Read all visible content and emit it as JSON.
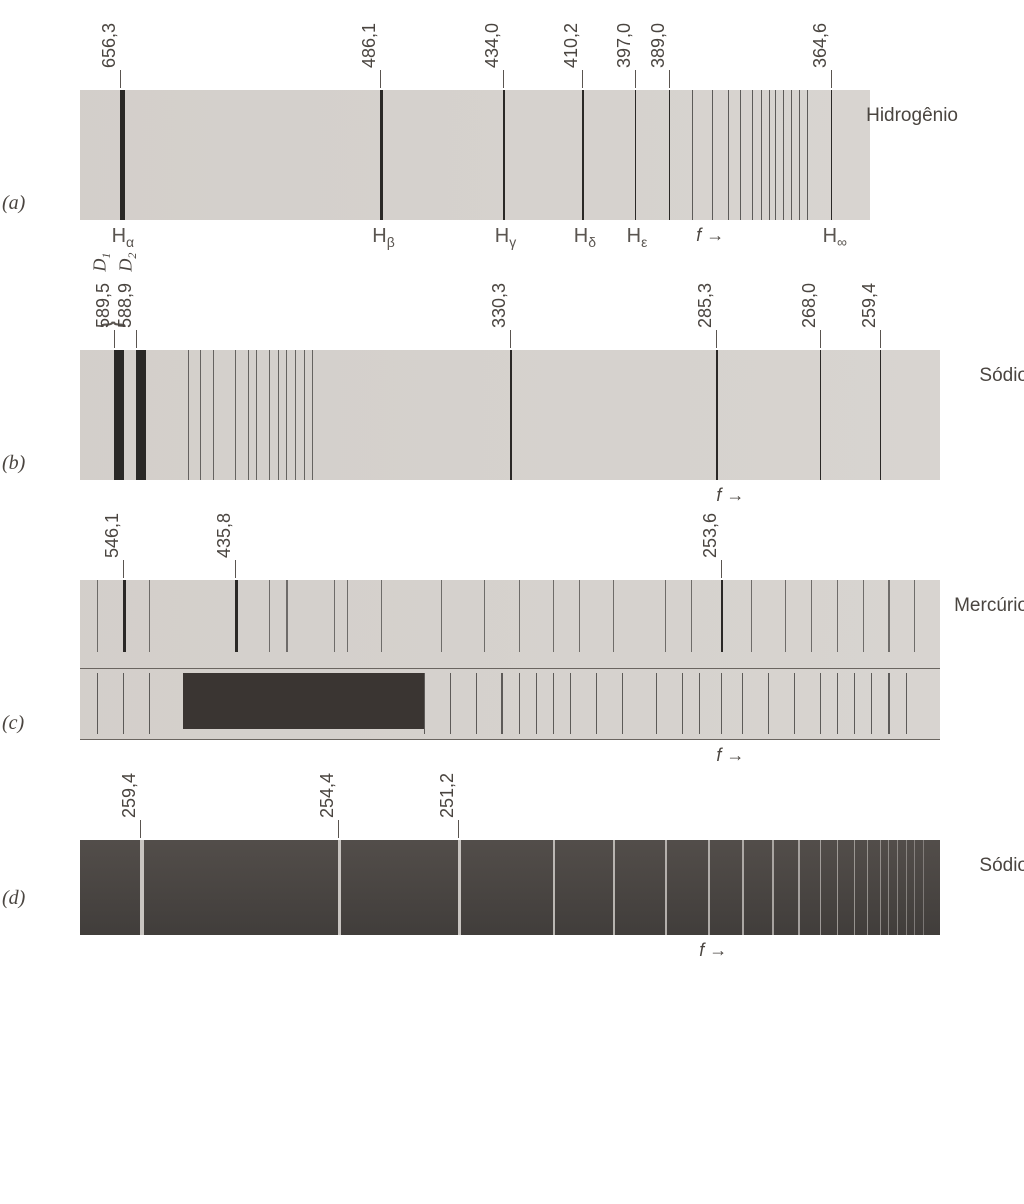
{
  "colors": {
    "band_bg": "#d8d4d0",
    "dark_band_bg": "#5a5552",
    "line_dark": "#2a2826",
    "line_light": "#c8c4c0",
    "text": "#4a4540",
    "tick": "#5a5550"
  },
  "typography": {
    "label_fontsize": 18,
    "element_fontsize": 19,
    "panel_fontsize": 20
  },
  "panels": {
    "a": {
      "letter": "(a)",
      "element": "Hidrogênio",
      "band_width": 790,
      "lines": [
        {
          "wl": "656,3",
          "pos_pct": 5.0,
          "width": 5,
          "bottom": "H",
          "sub": "α"
        },
        {
          "wl": "486,1",
          "pos_pct": 38.0,
          "width": 3,
          "bottom": "H",
          "sub": "β"
        },
        {
          "wl": "434,0",
          "pos_pct": 53.5,
          "width": 2,
          "bottom": "H",
          "sub": "γ"
        },
        {
          "wl": "410,2",
          "pos_pct": 63.5,
          "width": 2,
          "bottom": "H",
          "sub": "δ"
        },
        {
          "wl": "397,0",
          "pos_pct": 70.2,
          "width": 1.5,
          "bottom": "H",
          "sub": "ε"
        },
        {
          "wl": "389,0",
          "pos_pct": 74.5,
          "width": 1.2
        },
        {
          "wl": "364,6",
          "pos_pct": 95.0,
          "width": 1,
          "bottom": "H",
          "sub": "∞"
        }
      ],
      "extra_lines_pct": [
        77.5,
        80.0,
        82.0,
        83.5,
        85.0,
        86.2,
        87.2,
        88.0,
        89.0,
        90.0,
        91.0,
        92.0
      ],
      "freq_arrow": "f →",
      "freq_pos_pct": 78
    },
    "b": {
      "letter": "(b)",
      "element": "Sódio",
      "band_width": 860,
      "d_labels": [
        {
          "text": "D",
          "sub": "1",
          "pos_pct": 4.0
        },
        {
          "text": "D",
          "sub": "2",
          "pos_pct": 7.0
        }
      ],
      "lines": [
        {
          "wl": "589,5",
          "pos_pct": 4.0,
          "width": 10
        },
        {
          "wl": "588,9",
          "pos_pct": 6.5,
          "width": 10
        },
        {
          "wl": "330,3",
          "pos_pct": 50.0,
          "width": 2
        },
        {
          "wl": "285,3",
          "pos_pct": 74.0,
          "width": 1.5
        },
        {
          "wl": "268,0",
          "pos_pct": 86.0,
          "width": 1.2
        },
        {
          "wl": "259,4",
          "pos_pct": 93.0,
          "width": 1
        }
      ],
      "extra_lines_pct": [
        12.5,
        14.0,
        15.5,
        18.0,
        19.5,
        20.5,
        22.0,
        23.0,
        24.0,
        25.0,
        26.0,
        27.0
      ],
      "freq_arrow": "f →",
      "freq_pos_pct": 74
    },
    "c": {
      "letter": "(c)",
      "element": "Mercúrio",
      "band_width": 860,
      "lines": [
        {
          "wl": "546,1",
          "pos_pct": 5.0,
          "width": 3
        },
        {
          "wl": "435,8",
          "pos_pct": 18.0,
          "width": 3
        },
        {
          "wl": "253,6",
          "pos_pct": 74.5,
          "width": 2
        }
      ],
      "extra_lines_top_pct": [
        2.0,
        8.0,
        22.0,
        24.0,
        29.5,
        31.0,
        35.0,
        42.0,
        47.0,
        51.0,
        55.0,
        58.0,
        62.0,
        68.0,
        71.0,
        78.0,
        82.0,
        85.0,
        88.0,
        91.0,
        94.0,
        97.0
      ],
      "extra_lines_bot_pct": [
        2.0,
        5.0,
        8.0,
        40.0,
        43.0,
        46.0,
        49.0,
        51.0,
        53.0,
        55.0,
        57.0,
        60.0,
        63.0,
        67.0,
        70.0,
        72.0,
        74.5,
        77.0,
        80.0,
        83.0,
        86.0,
        88.0,
        90.0,
        92.0,
        94.0,
        96.0
      ],
      "dark_region": {
        "left_pct": 12,
        "width_pct": 28
      },
      "freq_arrow": "f →",
      "freq_pos_pct": 74
    },
    "d": {
      "letter": "(d)",
      "element": "Sódio",
      "band_width": 860,
      "lines": [
        {
          "wl": "259,4",
          "pos_pct": 7.0,
          "width": 4
        },
        {
          "wl": "254,4",
          "pos_pct": 30.0,
          "width": 3
        },
        {
          "wl": "251,2",
          "pos_pct": 44.0,
          "width": 2.5
        }
      ],
      "extra_lines_pct": [
        55.0,
        62.0,
        68.0,
        73.0,
        77.0,
        80.5,
        83.5,
        86.0,
        88.0,
        90.0,
        91.5,
        93.0,
        94.0,
        95.0,
        96.0,
        97.0,
        98.0
      ],
      "freq_arrow": "f →",
      "freq_pos_pct": 72
    }
  }
}
